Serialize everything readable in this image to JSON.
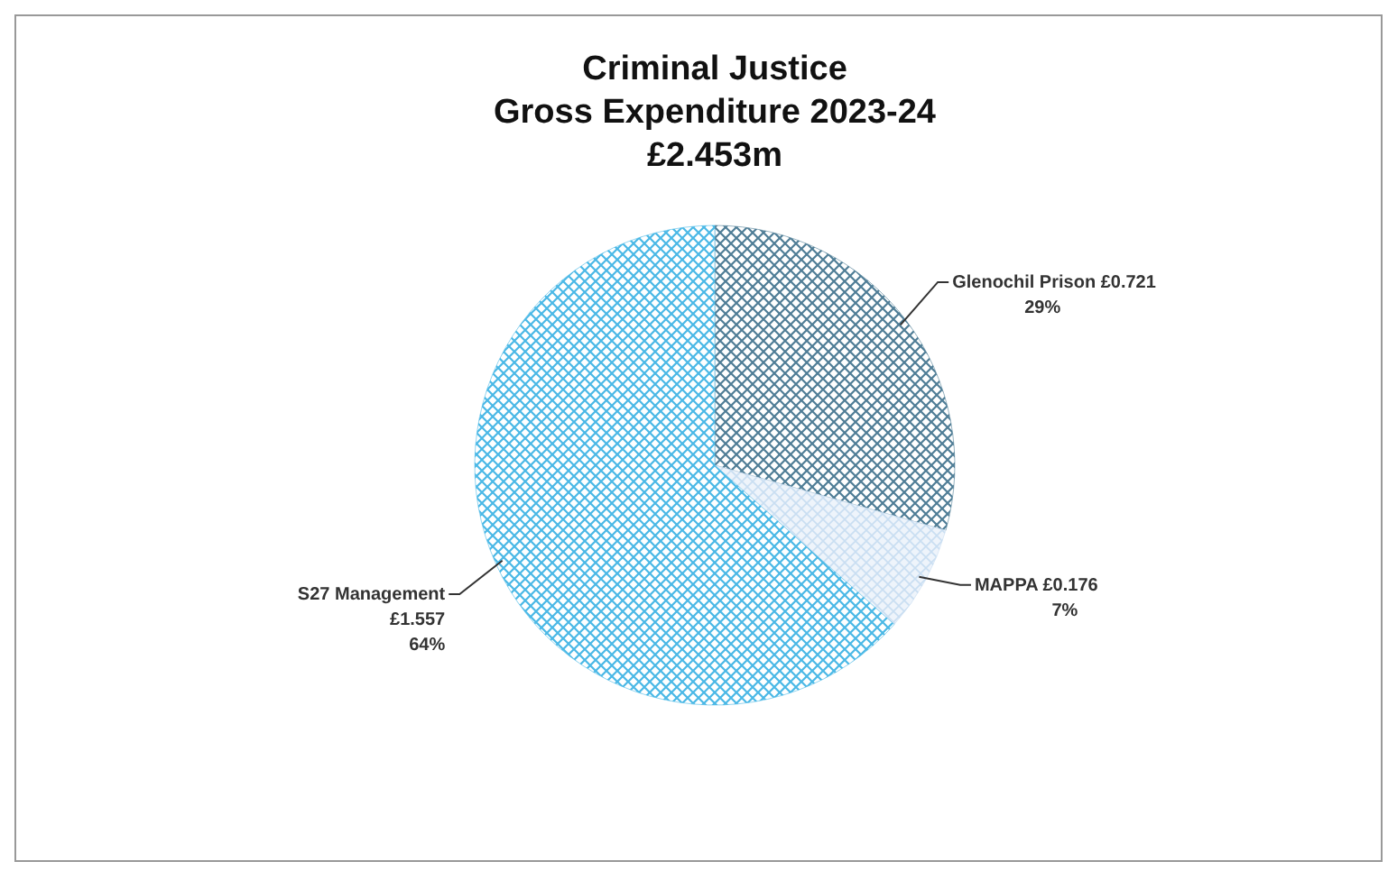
{
  "chart_data": {
    "type": "pie",
    "title": "Criminal Justice\nGross Expenditure 2023-24\n£2.453m",
    "categories": [
      "Glenochil Prison",
      "MAPPA",
      "S27 Management"
    ],
    "values": [
      0.721,
      0.176,
      1.557
    ],
    "colors": [
      "#4f7d96",
      "#c9def2",
      "#4ab8e6"
    ],
    "value_labels": [
      "£0.721\n29%",
      "£0.176\n7%",
      "£1.557\n64%"
    ],
    "legend": false
  }
}
